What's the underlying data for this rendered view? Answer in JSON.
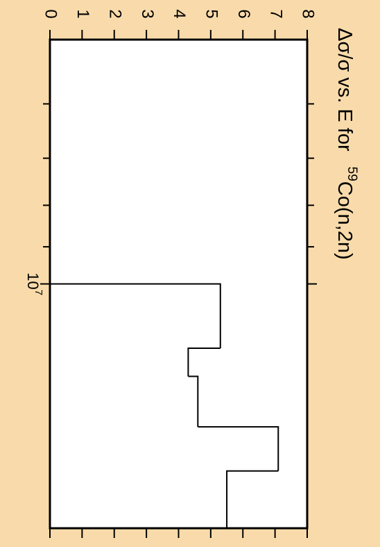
{
  "chart_data": {
    "type": "histogram",
    "title": "Δσ/σ vs. E for",
    "title_superscript": "59",
    "title_suffix": "Co(n,2n)",
    "bins": [
      10000000,
      12000000,
      13000000,
      15000000,
      17000000,
      20000000
    ],
    "values": [
      5.3,
      4.3,
      4.6,
      7.1,
      5.5
    ],
    "color": "#000000",
    "xlim": [
      5000000,
      20000000
    ],
    "xscale": "log",
    "xticks": [
      {
        "value": 10000000,
        "label": "10",
        "exponent": "7"
      }
    ],
    "xminor_ticks": [
      6000000,
      7000000,
      8000000,
      9000000
    ],
    "ylim": [
      0,
      8
    ],
    "yticks": [
      0,
      1,
      2,
      3,
      4,
      5,
      6,
      7,
      8
    ]
  }
}
